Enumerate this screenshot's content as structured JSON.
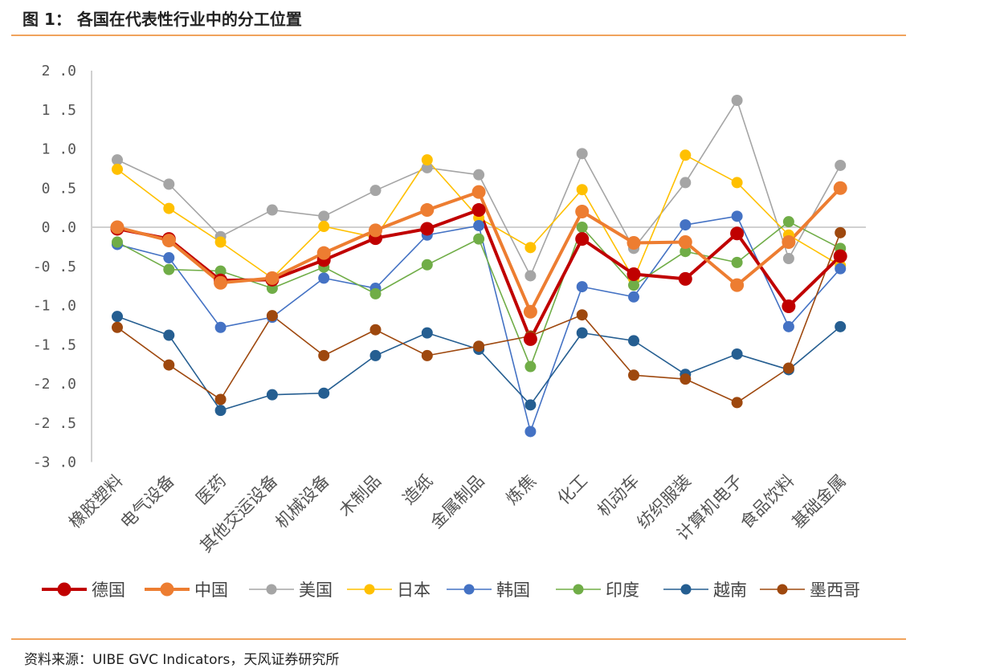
{
  "header": {
    "title": "图 1：  各国在代表性行业中的分工位置"
  },
  "footer": {
    "source": "资料来源：UIBE GVC Indicators，天风证券研究所"
  },
  "chart_data": {
    "type": "line",
    "y_ticks": [
      "2.0",
      "1.5",
      "1.0",
      "0.5",
      "0.0",
      "-0.5",
      "-1.0",
      "-1.5",
      "-2.0",
      "-2.5",
      "-3.0"
    ],
    "ylim": [
      -3.0,
      2.0
    ],
    "grid": false,
    "legend_position": "bottom",
    "categories": [
      "橡胶塑料",
      "电气设备",
      "医药",
      "其他交运设备",
      "机械设备",
      "木制品",
      "造纸",
      "金属制品",
      "炼焦",
      "化工",
      "机动车",
      "纺织服装",
      "计算机电子",
      "食品饮料",
      "基础金属"
    ],
    "series": [
      {
        "name": "德国",
        "color": "#c00000",
        "bold": true,
        "values": [
          -0.02,
          -0.15,
          -0.68,
          -0.67,
          -0.42,
          -0.14,
          -0.02,
          0.22,
          -1.43,
          -0.15,
          -0.6,
          -0.66,
          -0.08,
          -1.01,
          -0.37
        ]
      },
      {
        "name": "中国",
        "color": "#ed7d31",
        "bold": true,
        "values": [
          0.0,
          -0.17,
          -0.71,
          -0.65,
          -0.33,
          -0.04,
          0.22,
          0.45,
          -1.08,
          0.2,
          -0.2,
          -0.19,
          -0.74,
          -0.19,
          0.5
        ]
      },
      {
        "name": "美国",
        "color": "#a5a5a5",
        "bold": false,
        "values": [
          0.86,
          0.55,
          -0.12,
          0.22,
          0.14,
          0.47,
          0.76,
          0.67,
          -0.62,
          0.94,
          -0.27,
          0.57,
          1.62,
          -0.4,
          0.79
        ]
      },
      {
        "name": "日本",
        "color": "#ffc000",
        "bold": false,
        "values": [
          0.74,
          0.24,
          -0.19,
          -0.65,
          0.01,
          -0.13,
          0.86,
          0.12,
          -0.26,
          0.48,
          -0.66,
          0.92,
          0.57,
          -0.1,
          -0.49
        ]
      },
      {
        "name": "韩国",
        "color": "#4472c4",
        "bold": false,
        "values": [
          -0.22,
          -0.39,
          -1.28,
          -1.15,
          -0.65,
          -0.78,
          -0.1,
          0.02,
          -2.61,
          -0.76,
          -0.89,
          0.03,
          0.14,
          -1.27,
          -0.53
        ]
      },
      {
        "name": "印度",
        "color": "#70ad47",
        "bold": false,
        "values": [
          -0.19,
          -0.54,
          -0.56,
          -0.78,
          -0.51,
          -0.85,
          -0.48,
          -0.15,
          -1.78,
          0.0,
          -0.74,
          -0.31,
          -0.45,
          0.07,
          -0.27
        ]
      },
      {
        "name": "越南",
        "color": "#255e91",
        "bold": false,
        "values": [
          -1.14,
          -1.38,
          -2.34,
          -2.14,
          -2.12,
          -1.64,
          -1.35,
          -1.56,
          -2.27,
          -1.35,
          -1.45,
          -1.88,
          -1.62,
          -1.82,
          -1.27
        ]
      },
      {
        "name": "墨西哥",
        "color": "#9e480e",
        "bold": false,
        "values": [
          -1.28,
          -1.76,
          -2.2,
          -1.13,
          -1.64,
          -1.31,
          -1.64,
          -1.52,
          -1.39,
          -1.12,
          -1.89,
          -1.94,
          -2.24,
          -1.8,
          -0.07
        ]
      }
    ]
  }
}
